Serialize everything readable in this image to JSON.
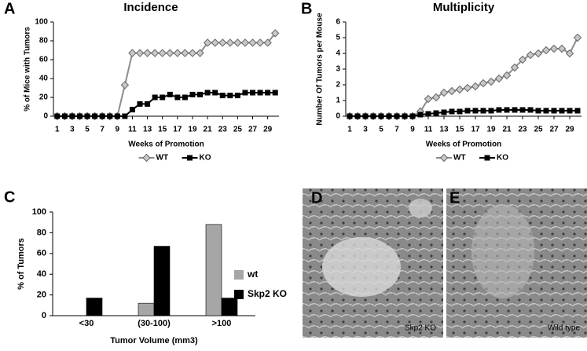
{
  "chart_data": [
    {
      "type": "line",
      "panel": "A",
      "title": "Incidence",
      "x_label": "Weeks of Promotion",
      "y_label": "% of Mice with Tumors",
      "x": [
        1,
        2,
        3,
        4,
        5,
        6,
        7,
        8,
        9,
        10,
        11,
        12,
        13,
        14,
        15,
        16,
        17,
        18,
        19,
        20,
        21,
        22,
        23,
        24,
        25,
        26,
        27,
        28,
        29,
        30
      ],
      "xlim": [
        0.5,
        30.5
      ],
      "xticks": [
        1,
        3,
        5,
        7,
        9,
        11,
        13,
        15,
        17,
        19,
        21,
        23,
        25,
        27,
        29
      ],
      "ylim": [
        0,
        100
      ],
      "yticks": [
        0,
        20,
        40,
        60,
        80,
        100
      ],
      "legend": "bottom",
      "series": [
        {
          "name": "WT",
          "color": "#8c8c8c",
          "marker": "diamond",
          "values": [
            0,
            0,
            0,
            0,
            0,
            0,
            0,
            0,
            0,
            33,
            67,
            67,
            67,
            67,
            67,
            67,
            67,
            67,
            67,
            67,
            78,
            78,
            78,
            78,
            78,
            78,
            78,
            78,
            78,
            88
          ]
        },
        {
          "name": "KO",
          "color": "#000000",
          "marker": "square",
          "values": [
            0,
            0,
            0,
            0,
            0,
            0,
            0,
            0,
            0,
            0,
            7,
            13,
            13,
            20,
            20,
            23,
            20,
            20,
            23,
            23,
            25,
            25,
            22,
            22,
            22,
            25,
            25,
            25,
            25,
            25
          ]
        }
      ]
    },
    {
      "type": "line",
      "panel": "B",
      "title": "Multiplicity",
      "x_label": "Weeks of Promotion",
      "y_label": "Number  Of Tumors per Mouse",
      "x": [
        1,
        2,
        3,
        4,
        5,
        6,
        7,
        8,
        9,
        10,
        11,
        12,
        13,
        14,
        15,
        16,
        17,
        18,
        19,
        20,
        21,
        22,
        23,
        24,
        25,
        26,
        27,
        28,
        29,
        30
      ],
      "xlim": [
        0.5,
        30.5
      ],
      "xticks": [
        1,
        3,
        5,
        7,
        9,
        11,
        13,
        15,
        17,
        19,
        21,
        23,
        25,
        27,
        29
      ],
      "ylim": [
        0,
        6
      ],
      "yticks": [
        0,
        1,
        2,
        3,
        4,
        5,
        6
      ],
      "legend": "bottom",
      "series": [
        {
          "name": "WT",
          "color": "#8c8c8c",
          "marker": "diamond",
          "values": [
            0,
            0,
            0,
            0,
            0,
            0,
            0,
            0,
            0,
            0.3,
            1.1,
            1.2,
            1.5,
            1.6,
            1.7,
            1.8,
            1.9,
            2.1,
            2.2,
            2.4,
            2.6,
            3.1,
            3.6,
            3.9,
            4.0,
            4.2,
            4.3,
            4.3,
            4.0,
            5.0
          ]
        },
        {
          "name": "KO",
          "color": "#000000",
          "marker": "square",
          "values": [
            0,
            0,
            0,
            0,
            0,
            0,
            0,
            0,
            0,
            0.1,
            0.15,
            0.2,
            0.25,
            0.3,
            0.3,
            0.35,
            0.35,
            0.35,
            0.35,
            0.4,
            0.4,
            0.4,
            0.4,
            0.4,
            0.35,
            0.35,
            0.35,
            0.35,
            0.35,
            0.35
          ]
        }
      ]
    },
    {
      "type": "bar",
      "panel": "C",
      "x_label": "Tumor Volume (mm3)",
      "y_label": "% of Tumors",
      "categories": [
        "<30",
        "(30-100)",
        ">100"
      ],
      "ylim": [
        0,
        100
      ],
      "yticks": [
        0,
        20,
        40,
        60,
        80,
        100
      ],
      "legend": "right",
      "series": [
        {
          "name": "wt",
          "color": "#a6a6a6",
          "values": [
            0,
            12,
            88
          ]
        },
        {
          "name": "Skp2 KO",
          "color": "#000000",
          "values": [
            17,
            67,
            17
          ]
        }
      ]
    }
  ],
  "images": [
    {
      "panel": "D",
      "label": "Skp2 KO"
    },
    {
      "panel": "E",
      "label": "Wild type"
    }
  ]
}
